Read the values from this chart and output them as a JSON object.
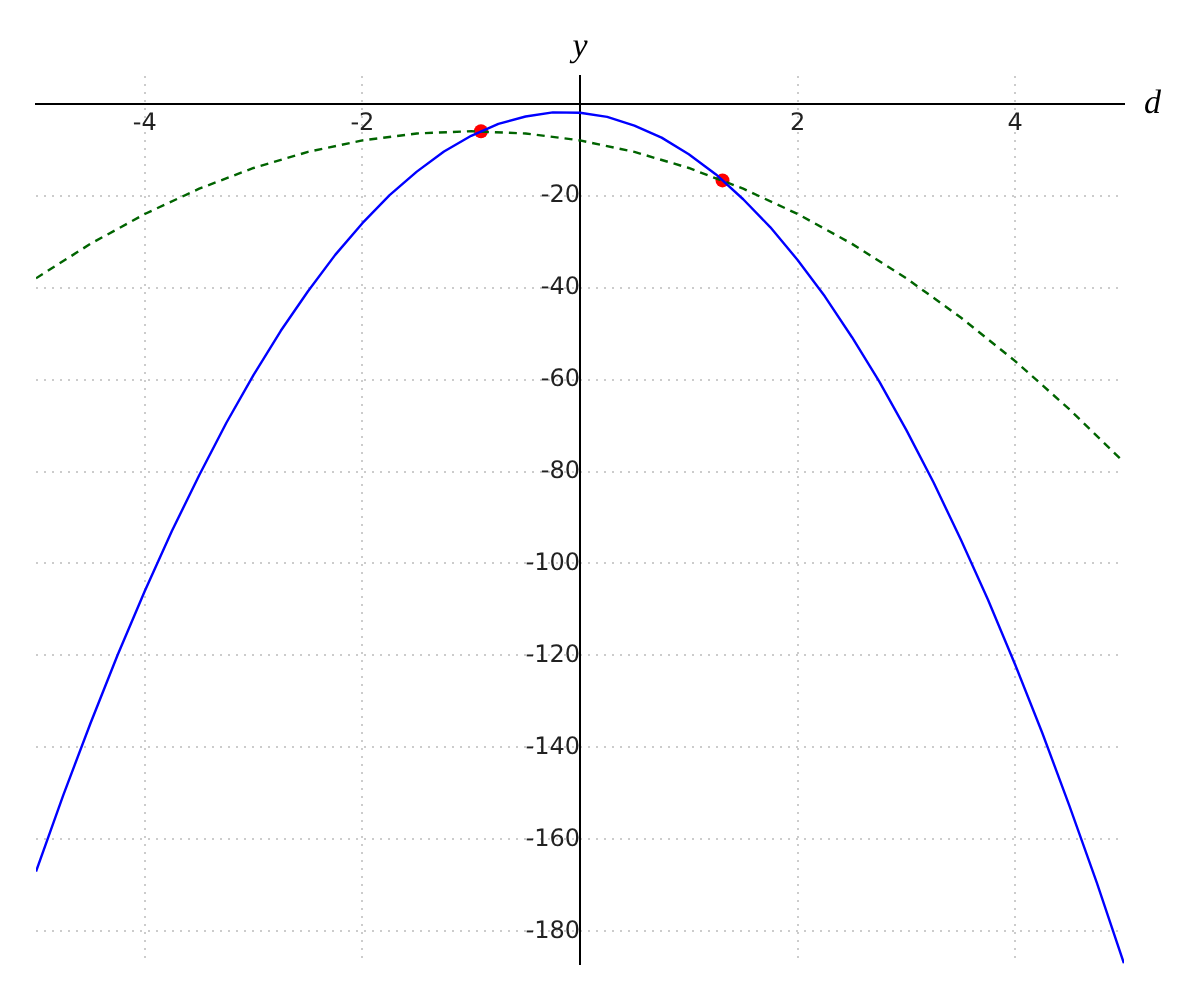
{
  "chart_data": {
    "type": "line",
    "xlabel": "d",
    "ylabel": "y",
    "xlim": [
      -5,
      5
    ],
    "ylim": [
      -187,
      6
    ],
    "xticks": [
      -4,
      -2,
      2,
      4
    ],
    "yticks": [
      -180,
      -160,
      -140,
      -120,
      -100,
      -80,
      -60,
      -40,
      -20
    ],
    "grid": true,
    "legend": false,
    "series": [
      {
        "type": "line",
        "color": "#0000ff",
        "line_style": "solid",
        "marker": "none",
        "x": [
          -5,
          -4.75,
          -4.5,
          -4.25,
          -4,
          -3.75,
          -3.5,
          -3.25,
          -3,
          -2.75,
          -2.5,
          -2.25,
          -2,
          -1.75,
          -1.5,
          -1.25,
          -1,
          -0.75,
          -0.5,
          -0.25,
          0,
          0.25,
          0.5,
          0.75,
          1,
          1.25,
          1.5,
          1.75,
          2,
          2.25,
          2.5,
          2.75,
          3,
          3.25,
          3.5,
          3.75,
          4,
          4.25,
          4.5,
          4.75,
          5
        ],
        "values": [
          -167,
          -150.4,
          -134.8,
          -119.9,
          -106,
          -92.9,
          -80.8,
          -69.4,
          -59,
          -49.4,
          -40.8,
          -32.9,
          -26,
          -19.9,
          -14.8,
          -10.4,
          -7,
          -4.4,
          -2.8,
          -1.9,
          -2,
          -2.9,
          -4.8,
          -7.4,
          -11,
          -15.4,
          -20.8,
          -26.9,
          -34,
          -41.9,
          -50.8,
          -60.4,
          -71,
          -82.4,
          -94.8,
          -107.9,
          -122,
          -136.9,
          -152.8,
          -169.4,
          -187
        ]
      },
      {
        "type": "line",
        "color": "#006400",
        "line_style": "dashed",
        "marker": "none",
        "x": [
          -5,
          -4.5,
          -4,
          -3.5,
          -3,
          -2.5,
          -2,
          -1.5,
          -1,
          -0.5,
          0,
          0.5,
          1,
          1.5,
          2,
          2.5,
          3,
          3.5,
          4,
          4.5,
          5
        ],
        "values": [
          -38,
          -30.5,
          -24,
          -18.5,
          -14,
          -10.5,
          -8,
          -6.5,
          -6,
          -6.5,
          -8,
          -10.5,
          -14,
          -18.5,
          -24,
          -30.5,
          -38,
          -46.5,
          -56,
          -66.5,
          -78
        ]
      },
      {
        "type": "scatter",
        "color": "#ff0000",
        "marker": "circle",
        "x": [
          -0.91,
          1.31
        ],
        "values": [
          -6,
          -16.7
        ]
      }
    ]
  }
}
